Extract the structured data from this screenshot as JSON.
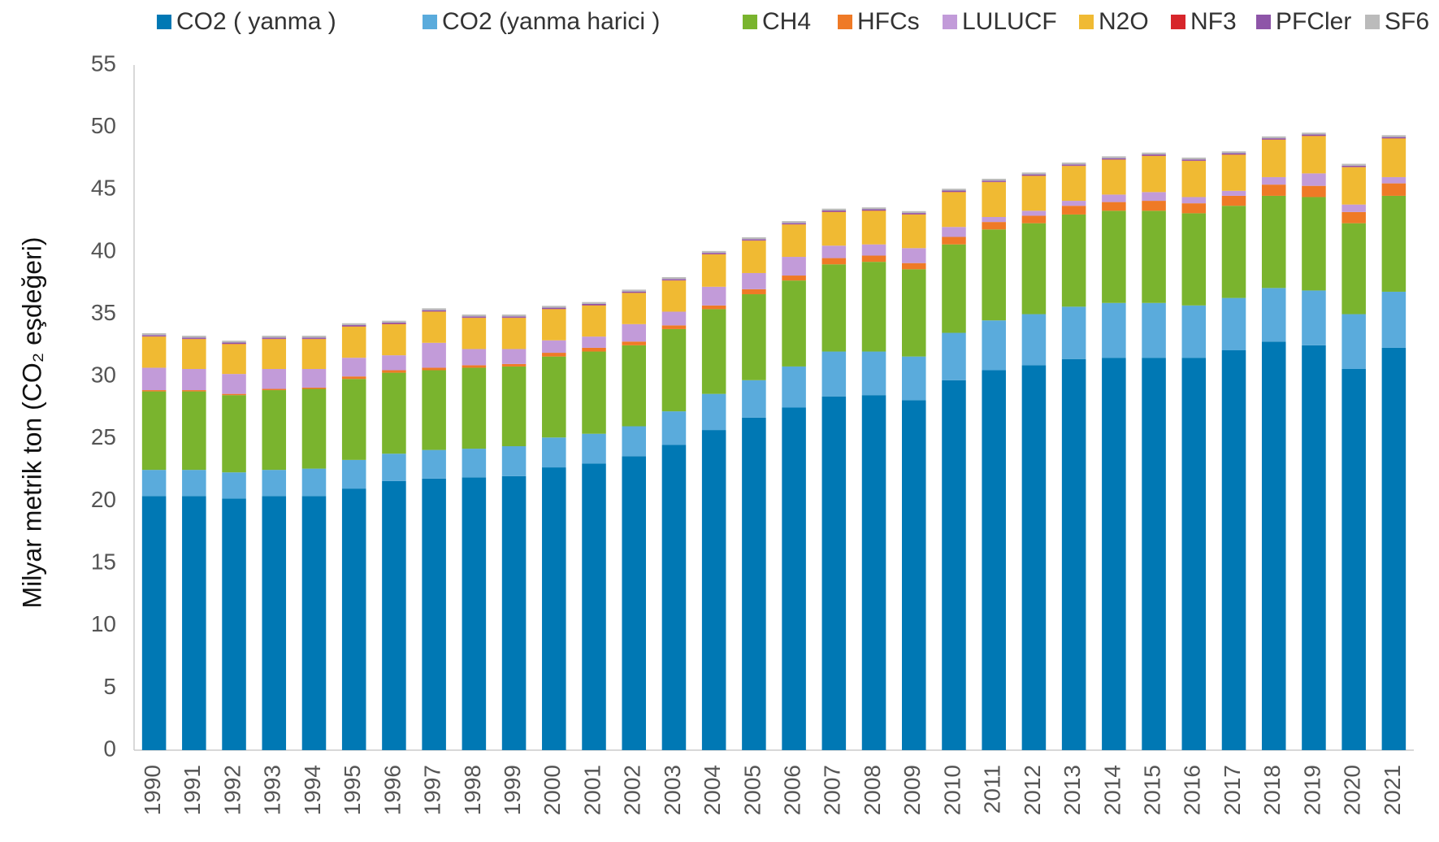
{
  "chart_data": {
    "type": "stacked_bar",
    "y_axis_label": "Milyar metrik ton (CO₂ eşdeğeri)",
    "categories": [
      "1990",
      "1991",
      "1992",
      "1993",
      "1994",
      "1995",
      "1996",
      "1997",
      "1998",
      "1999",
      "2000",
      "2001",
      "2002",
      "2003",
      "2004",
      "2005",
      "2006",
      "2007",
      "2008",
      "2009",
      "2010",
      "2011",
      "2012",
      "2013",
      "2014",
      "2015",
      "2016",
      "2017",
      "2018",
      "2019",
      "2020",
      "2021"
    ],
    "ylim": [
      0,
      55
    ],
    "yticks": [
      0,
      5,
      10,
      15,
      20,
      25,
      30,
      35,
      40,
      45,
      50,
      55
    ],
    "grid": false,
    "series": [
      {
        "name": "CO2 ( yanma )",
        "color": "#0078b4",
        "values": [
          20.4,
          20.4,
          20.2,
          20.4,
          20.4,
          21.0,
          21.6,
          21.8,
          21.9,
          22.0,
          22.7,
          23.0,
          23.6,
          24.5,
          25.7,
          26.7,
          27.5,
          28.4,
          28.5,
          28.1,
          29.7,
          30.5,
          30.9,
          31.4,
          31.5,
          31.5,
          31.5,
          32.1,
          32.8,
          32.5,
          30.6,
          32.3
        ]
      },
      {
        "name": "CO2 (yanma harici )",
        "color": "#5aabdc",
        "values": [
          2.1,
          2.1,
          2.1,
          2.1,
          2.2,
          2.3,
          2.2,
          2.3,
          2.3,
          2.4,
          2.4,
          2.4,
          2.4,
          2.7,
          2.9,
          3.0,
          3.3,
          3.6,
          3.5,
          3.5,
          3.8,
          4.0,
          4.1,
          4.2,
          4.4,
          4.4,
          4.2,
          4.2,
          4.3,
          4.4,
          4.4,
          4.5
        ]
      },
      {
        "name": "CH4",
        "color": "#7ab42e",
        "values": [
          6.3,
          6.3,
          6.2,
          6.4,
          6.4,
          6.5,
          6.5,
          6.4,
          6.5,
          6.4,
          6.5,
          6.6,
          6.5,
          6.6,
          6.8,
          6.9,
          6.9,
          7.0,
          7.2,
          7.0,
          7.1,
          7.3,
          7.3,
          7.4,
          7.4,
          7.4,
          7.4,
          7.4,
          7.4,
          7.5,
          7.3,
          7.7
        ]
      },
      {
        "name": "HFCs",
        "color": "#ef7a26",
        "values": [
          0.1,
          0.1,
          0.1,
          0.1,
          0.1,
          0.2,
          0.2,
          0.2,
          0.2,
          0.2,
          0.3,
          0.3,
          0.3,
          0.3,
          0.3,
          0.4,
          0.4,
          0.5,
          0.5,
          0.5,
          0.6,
          0.6,
          0.6,
          0.7,
          0.7,
          0.8,
          0.8,
          0.8,
          0.9,
          0.9,
          0.9,
          1.0
        ]
      },
      {
        "name": "LULUCF",
        "color": "#c29bd9",
        "values": [
          1.8,
          1.7,
          1.6,
          1.6,
          1.5,
          1.5,
          1.2,
          2.0,
          1.3,
          1.2,
          1.0,
          0.9,
          1.4,
          1.1,
          1.5,
          1.3,
          1.5,
          1.0,
          0.9,
          1.2,
          0.8,
          0.4,
          0.4,
          0.4,
          0.6,
          0.7,
          0.5,
          0.4,
          0.6,
          1.0,
          0.6,
          0.5
        ]
      },
      {
        "name": "N2O",
        "color": "#f0ba33",
        "values": [
          2.5,
          2.4,
          2.4,
          2.4,
          2.4,
          2.5,
          2.5,
          2.5,
          2.5,
          2.5,
          2.5,
          2.5,
          2.5,
          2.5,
          2.6,
          2.6,
          2.6,
          2.7,
          2.7,
          2.7,
          2.8,
          2.8,
          2.8,
          2.8,
          2.8,
          2.9,
          2.9,
          2.9,
          3.0,
          3.0,
          3.0,
          3.1
        ]
      },
      {
        "name": "NF3",
        "color": "#d7262b",
        "values": [
          0.02,
          0.02,
          0.02,
          0.02,
          0.02,
          0.02,
          0.02,
          0.02,
          0.02,
          0.02,
          0.02,
          0.02,
          0.02,
          0.02,
          0.02,
          0.02,
          0.02,
          0.02,
          0.02,
          0.02,
          0.02,
          0.02,
          0.02,
          0.02,
          0.02,
          0.02,
          0.02,
          0.02,
          0.02,
          0.02,
          0.02,
          0.02
        ]
      },
      {
        "name": "PFCler",
        "color": "#8e55a8",
        "values": [
          0.1,
          0.1,
          0.1,
          0.1,
          0.1,
          0.1,
          0.1,
          0.1,
          0.1,
          0.1,
          0.1,
          0.1,
          0.1,
          0.1,
          0.1,
          0.1,
          0.1,
          0.1,
          0.1,
          0.1,
          0.1,
          0.1,
          0.1,
          0.1,
          0.1,
          0.1,
          0.1,
          0.1,
          0.1,
          0.1,
          0.1,
          0.1
        ]
      },
      {
        "name": "SF6",
        "color": "#bbbbbb",
        "values": [
          0.15,
          0.15,
          0.15,
          0.15,
          0.15,
          0.15,
          0.15,
          0.15,
          0.15,
          0.15,
          0.15,
          0.15,
          0.15,
          0.15,
          0.15,
          0.15,
          0.15,
          0.15,
          0.15,
          0.15,
          0.15,
          0.15,
          0.15,
          0.15,
          0.15,
          0.15,
          0.15,
          0.15,
          0.15,
          0.15,
          0.15,
          0.15
        ]
      }
    ]
  }
}
